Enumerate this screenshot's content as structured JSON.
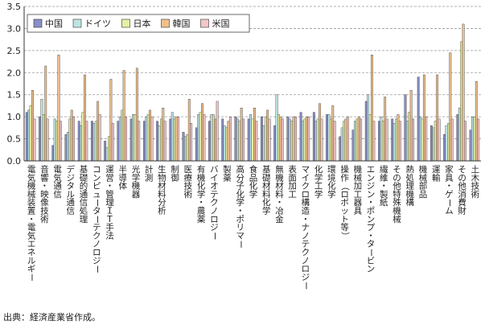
{
  "source": "出典：経済産業省作成。",
  "chart_data": {
    "type": "bar",
    "ylim": [
      0,
      3.5
    ],
    "yticks": [
      "0.0",
      "0.5",
      "1.0",
      "1.5",
      "2.0",
      "2.5",
      "3.0",
      "3.5"
    ],
    "grid": true,
    "legend_position": "top-left",
    "categories": [
      "電気機械装置・電気エネルギー",
      "音響・映像技術",
      "電気通信",
      "デジタル通信",
      "基礎的通信処理",
      "コンピューターテクノロジー",
      "運営・管理ＩＴ手法",
      "半導体",
      "光学機器",
      "計測",
      "生物材料分析",
      "制御",
      "医療技術",
      "有機化学・農薬",
      "バイオテクノロジー",
      "製薬",
      "高分子化学・ポリマー",
      "食品化学",
      "基礎材料化学",
      "無機材料・冶金",
      "表面加工",
      "マイクロ構造・ナノテクノロジー",
      "化学工学",
      "環境化学",
      "操作（ロボット等）",
      "機械加工器具",
      "エンジン・ポンプ・タービン",
      "繊維・製紙",
      "その他特殊機械",
      "熱処理機構",
      "機械部品",
      "運輸",
      "家具・ゲーム",
      "その他消費財",
      "土木技術"
    ],
    "series": [
      {
        "name": "中国",
        "color": "#8a8fc6",
        "values": [
          1.1,
          1.0,
          0.35,
          0.6,
          0.9,
          0.9,
          0.45,
          0.9,
          0.95,
          0.9,
          0.9,
          0.95,
          0.65,
          0.75,
          0.9,
          0.95,
          1.0,
          0.95,
          1.0,
          0.8,
          1.0,
          1.1,
          1.1,
          1.05,
          0.55,
          0.7,
          1.35,
          0.9,
          0.95,
          1.5,
          1.9,
          0.8,
          0.6,
          1.05,
          0.7
        ]
      },
      {
        "name": "ドイツ",
        "color": "#bfe3e3",
        "values": [
          1.15,
          1.4,
          0.95,
          0.65,
          0.8,
          0.85,
          0.3,
          1.0,
          1.05,
          1.0,
          0.8,
          1.1,
          0.55,
          1.05,
          1.05,
          0.8,
          0.95,
          1.05,
          0.8,
          1.5,
          0.95,
          0.9,
          0.9,
          1.05,
          0.75,
          0.9,
          1.5,
          1.0,
          0.85,
          0.9,
          1.0,
          0.75,
          0.8,
          1.2,
          1.0
        ]
      },
      {
        "name": "日本",
        "color": "#e6efa6",
        "values": [
          1.25,
          1.05,
          0.9,
          0.95,
          1.1,
          0.9,
          0.55,
          1.15,
          1.05,
          1.05,
          0.95,
          0.95,
          0.6,
          1.1,
          1.05,
          0.75,
          0.9,
          0.95,
          1.0,
          1.05,
          0.9,
          0.95,
          0.95,
          0.95,
          0.9,
          0.95,
          1.05,
          0.9,
          0.95,
          1.1,
          0.95,
          0.9,
          0.85,
          2.7,
          1.0
        ]
      },
      {
        "name": "韓国",
        "color": "#efc08b",
        "values": [
          1.6,
          2.15,
          2.4,
          1.15,
          1.95,
          1.35,
          1.85,
          2.05,
          2.1,
          1.15,
          1.2,
          1.0,
          1.4,
          1.3,
          0.95,
          0.9,
          1.2,
          1.2,
          1.15,
          1.0,
          1.0,
          1.0,
          1.3,
          1.25,
          0.95,
          1.0,
          2.4,
          1.45,
          1.05,
          1.6,
          1.95,
          1.95,
          2.45,
          3.1,
          1.8
        ]
      },
      {
        "name": "米国",
        "color": "#f4c6c6",
        "values": [
          0.95,
          0.95,
          0.9,
          1.0,
          0.9,
          1.05,
          0.85,
          1.0,
          0.9,
          1.0,
          0.9,
          1.0,
          0.85,
          1.05,
          1.35,
          1.0,
          0.95,
          0.9,
          0.95,
          0.95,
          1.0,
          1.0,
          0.95,
          0.9,
          1.0,
          0.95,
          0.9,
          0.95,
          0.9,
          0.95,
          1.0,
          0.95,
          0.95,
          0.9,
          0.95
        ]
      }
    ]
  }
}
